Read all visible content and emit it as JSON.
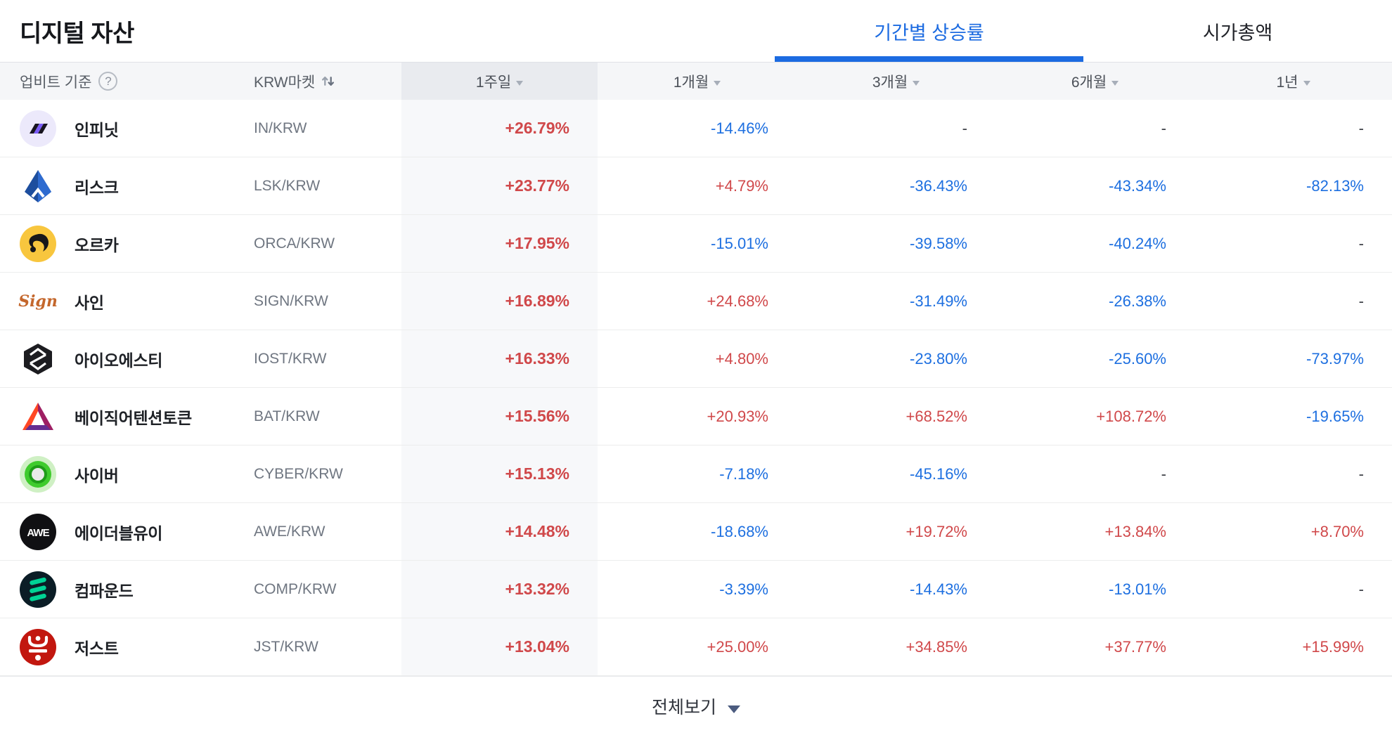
{
  "page": {
    "title": "디지털 자산"
  },
  "tabs": [
    {
      "label": "기간별 상승률",
      "active": true
    },
    {
      "label": "시가총액",
      "active": false
    }
  ],
  "colors": {
    "rise": "#d0484a",
    "fall": "#1d6fe0",
    "accent": "#1c6be1",
    "header_bg": "#f5f6f8",
    "highlight_header_bg": "#e9ebef",
    "highlight_col_bg": "#f7f8fa"
  },
  "table": {
    "headers": {
      "basis": "업비트 기준",
      "help_symbol": "?",
      "market": "KRW마켓",
      "periods": [
        "1주일",
        "1개월",
        "3개월",
        "6개월",
        "1년"
      ],
      "highlighted_period": "1주일"
    },
    "rows": [
      {
        "name": "인피닛",
        "pair": "IN/KRW",
        "icon": "infinit",
        "values": [
          {
            "text": "+26.79%",
            "dir": "up"
          },
          {
            "text": "-14.46%",
            "dir": "down"
          },
          {
            "text": "-",
            "dir": "flat"
          },
          {
            "text": "-",
            "dir": "flat"
          },
          {
            "text": "-",
            "dir": "flat"
          }
        ]
      },
      {
        "name": "리스크",
        "pair": "LSK/KRW",
        "icon": "lisk",
        "values": [
          {
            "text": "+23.77%",
            "dir": "up"
          },
          {
            "text": "+4.79%",
            "dir": "up"
          },
          {
            "text": "-36.43%",
            "dir": "down"
          },
          {
            "text": "-43.34%",
            "dir": "down"
          },
          {
            "text": "-82.13%",
            "dir": "down"
          }
        ]
      },
      {
        "name": "오르카",
        "pair": "ORCA/KRW",
        "icon": "orca",
        "values": [
          {
            "text": "+17.95%",
            "dir": "up"
          },
          {
            "text": "-15.01%",
            "dir": "down"
          },
          {
            "text": "-39.58%",
            "dir": "down"
          },
          {
            "text": "-40.24%",
            "dir": "down"
          },
          {
            "text": "-",
            "dir": "flat"
          }
        ]
      },
      {
        "name": "사인",
        "pair": "SIGN/KRW",
        "icon": "sign",
        "icon_text": "Sign",
        "values": [
          {
            "text": "+16.89%",
            "dir": "up"
          },
          {
            "text": "+24.68%",
            "dir": "up"
          },
          {
            "text": "-31.49%",
            "dir": "down"
          },
          {
            "text": "-26.38%",
            "dir": "down"
          },
          {
            "text": "-",
            "dir": "flat"
          }
        ]
      },
      {
        "name": "아이오에스티",
        "pair": "IOST/KRW",
        "icon": "iost",
        "values": [
          {
            "text": "+16.33%",
            "dir": "up"
          },
          {
            "text": "+4.80%",
            "dir": "up"
          },
          {
            "text": "-23.80%",
            "dir": "down"
          },
          {
            "text": "-25.60%",
            "dir": "down"
          },
          {
            "text": "-73.97%",
            "dir": "down"
          }
        ]
      },
      {
        "name": "베이직어텐션토큰",
        "pair": "BAT/KRW",
        "icon": "bat",
        "values": [
          {
            "text": "+15.56%",
            "dir": "up"
          },
          {
            "text": "+20.93%",
            "dir": "up"
          },
          {
            "text": "+68.52%",
            "dir": "up"
          },
          {
            "text": "+108.72%",
            "dir": "up"
          },
          {
            "text": "-19.65%",
            "dir": "down"
          }
        ]
      },
      {
        "name": "사이버",
        "pair": "CYBER/KRW",
        "icon": "cyber",
        "values": [
          {
            "text": "+15.13%",
            "dir": "up"
          },
          {
            "text": "-7.18%",
            "dir": "down"
          },
          {
            "text": "-45.16%",
            "dir": "down"
          },
          {
            "text": "-",
            "dir": "flat"
          },
          {
            "text": "-",
            "dir": "flat"
          }
        ]
      },
      {
        "name": "에이더블유이",
        "pair": "AWE/KRW",
        "icon": "awe",
        "icon_text": "AWE",
        "values": [
          {
            "text": "+14.48%",
            "dir": "up"
          },
          {
            "text": "-18.68%",
            "dir": "down"
          },
          {
            "text": "+19.72%",
            "dir": "up"
          },
          {
            "text": "+13.84%",
            "dir": "up"
          },
          {
            "text": "+8.70%",
            "dir": "up"
          }
        ]
      },
      {
        "name": "컴파운드",
        "pair": "COMP/KRW",
        "icon": "comp",
        "values": [
          {
            "text": "+13.32%",
            "dir": "up"
          },
          {
            "text": "-3.39%",
            "dir": "down"
          },
          {
            "text": "-14.43%",
            "dir": "down"
          },
          {
            "text": "-13.01%",
            "dir": "down"
          },
          {
            "text": "-",
            "dir": "flat"
          }
        ]
      },
      {
        "name": "저스트",
        "pair": "JST/KRW",
        "icon": "jst",
        "values": [
          {
            "text": "+13.04%",
            "dir": "up"
          },
          {
            "text": "+25.00%",
            "dir": "up"
          },
          {
            "text": "+34.85%",
            "dir": "up"
          },
          {
            "text": "+37.77%",
            "dir": "up"
          },
          {
            "text": "+15.99%",
            "dir": "up"
          }
        ]
      }
    ]
  },
  "footer": {
    "label": "전체보기"
  }
}
